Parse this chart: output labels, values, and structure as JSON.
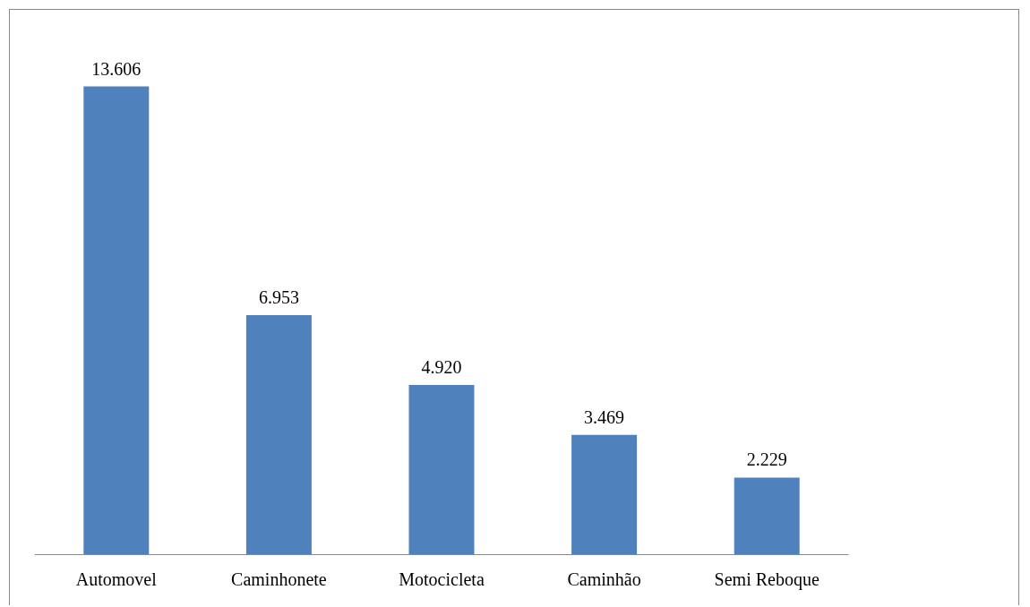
{
  "chart_data": {
    "type": "bar",
    "categories": [
      "Automovel",
      "Caminhonete",
      "Motocicleta",
      "Caminhão",
      "Semi Reboque"
    ],
    "values": [
      13606,
      6953,
      4920,
      3469,
      2229
    ],
    "value_labels": [
      "13.606",
      "6.953",
      "4.920",
      "3.469",
      "2.229"
    ],
    "color": "#4f81bd"
  }
}
